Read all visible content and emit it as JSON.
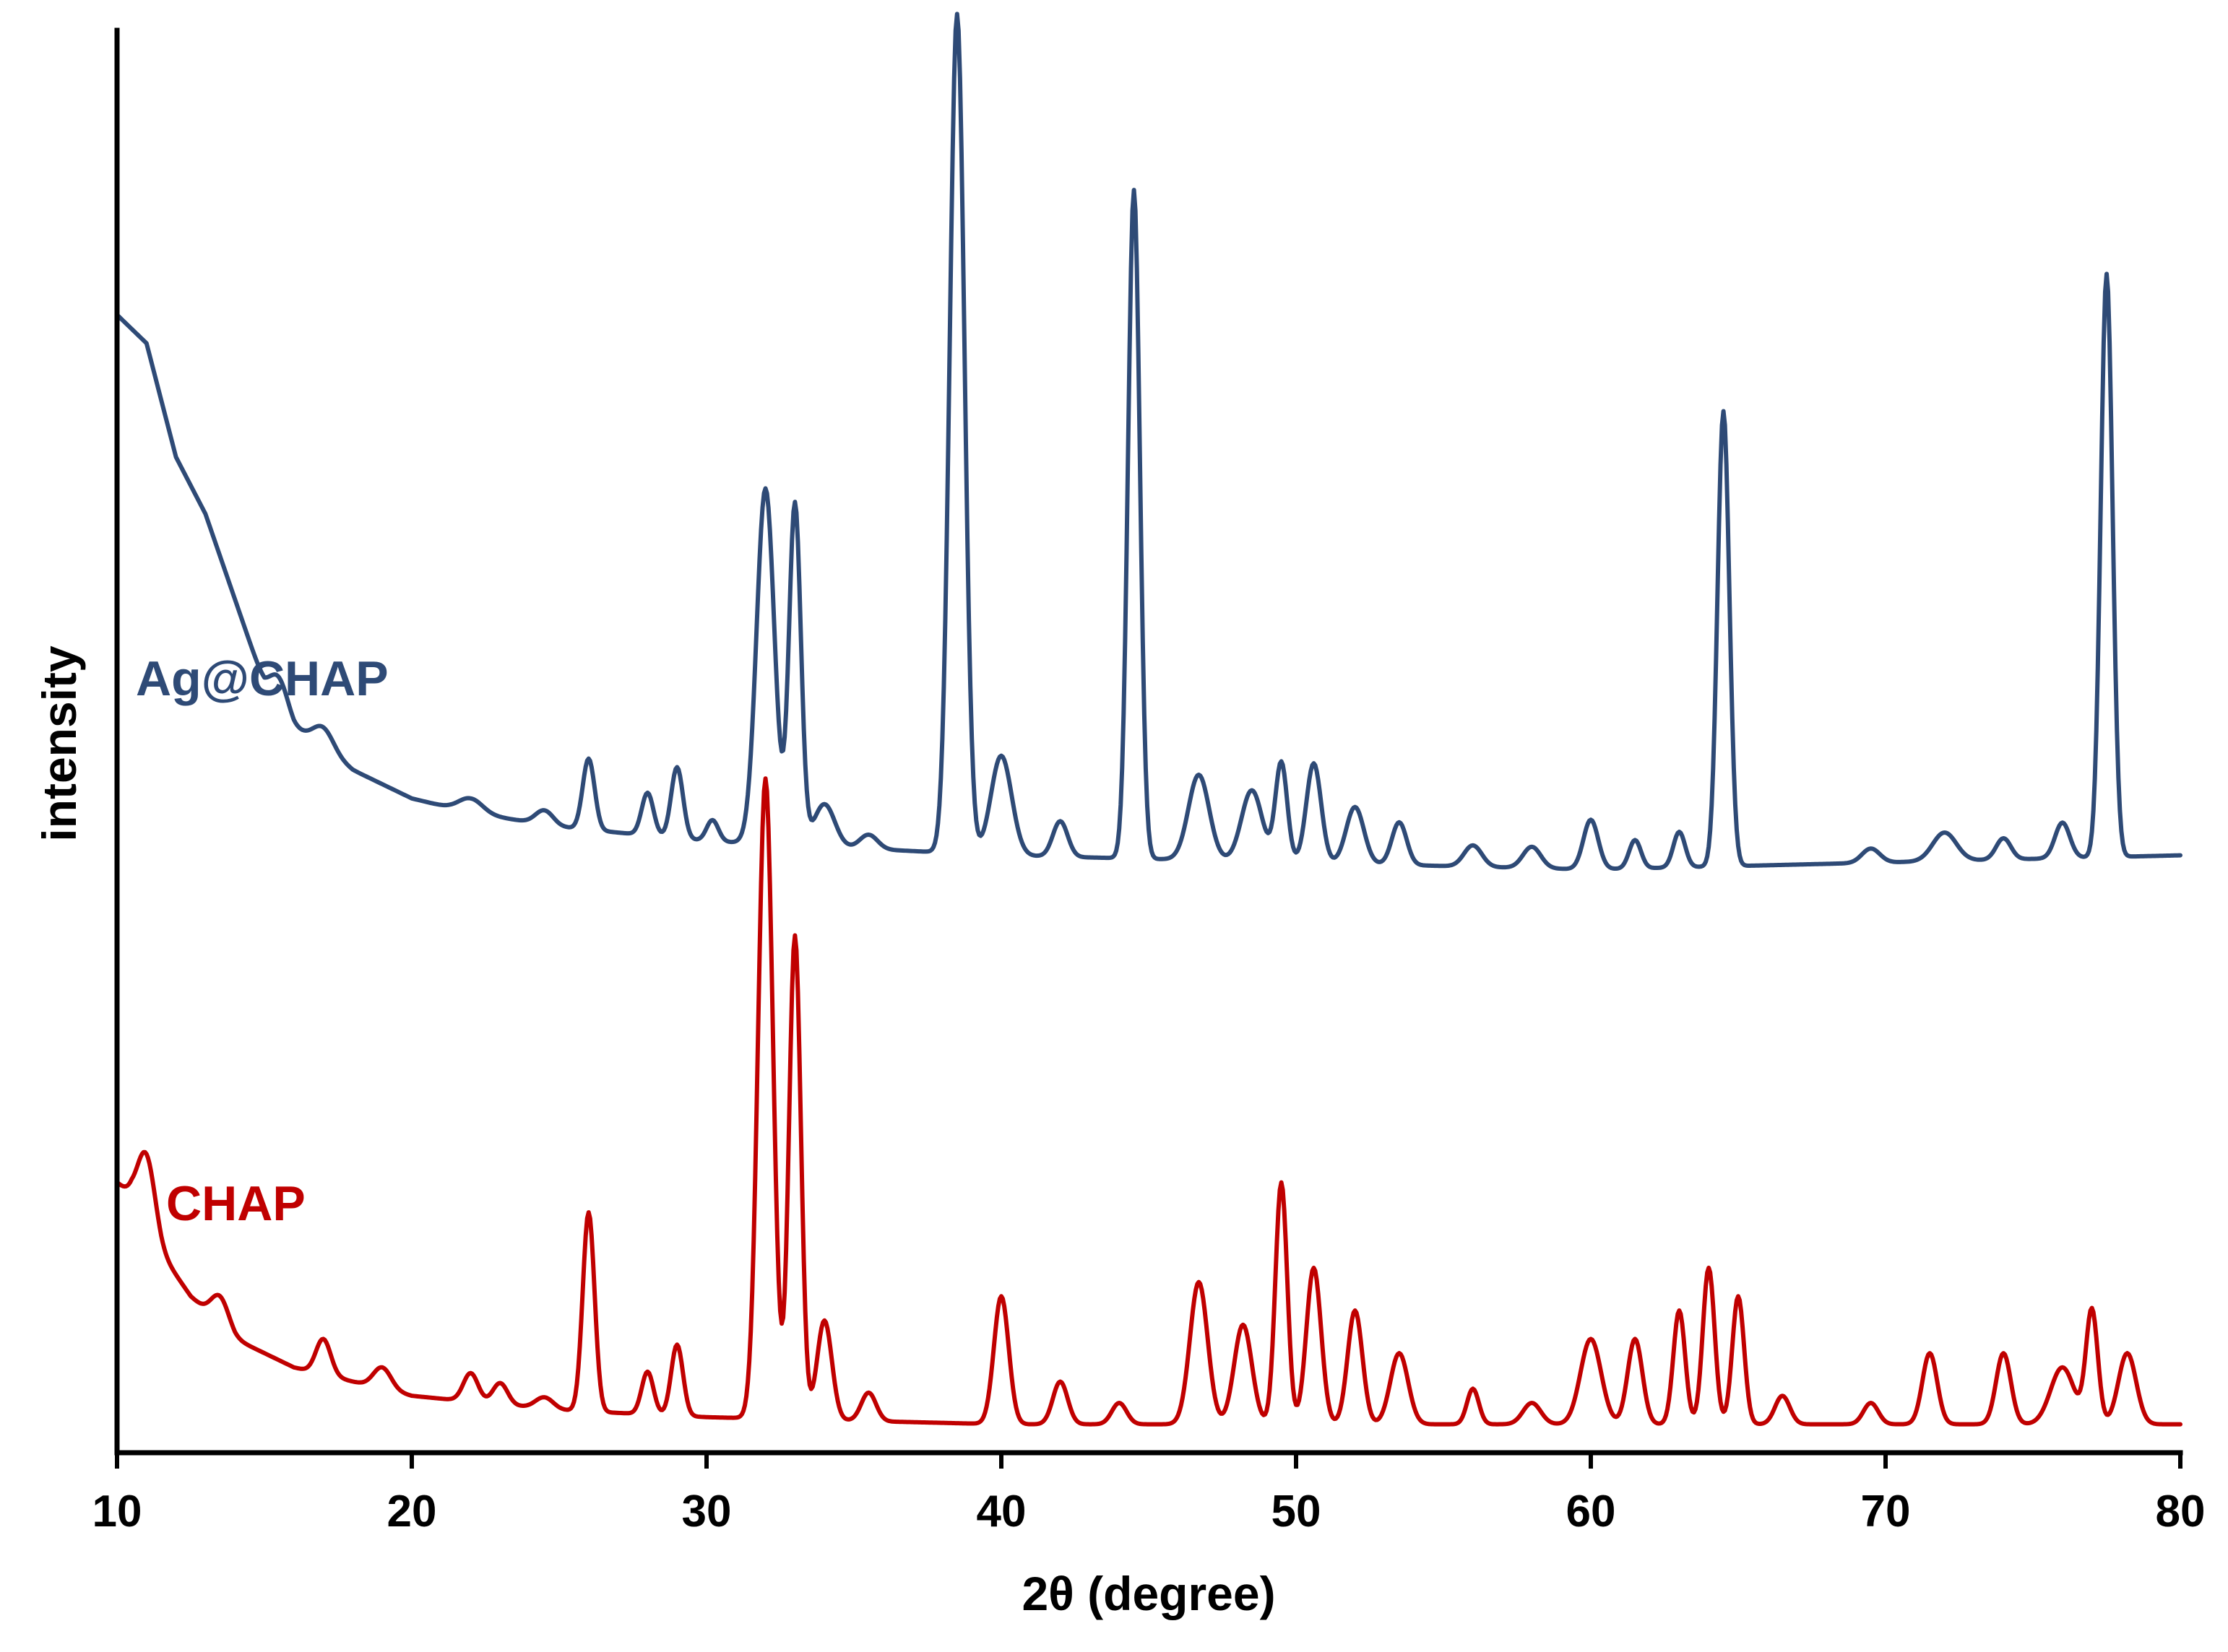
{
  "chart_data": {
    "type": "line",
    "title": "",
    "xlabel": "2θ (degree)",
    "ylabel": "intensity",
    "xlim": [
      10,
      80
    ],
    "ylim": [
      0,
      100
    ],
    "xticks": [
      "10",
      "20",
      "30",
      "40",
      "50",
      "60",
      "70",
      "80"
    ],
    "grid": false,
    "series": [
      {
        "name": "Ag@CHAP",
        "color": "#2E4A76",
        "baseline": 32,
        "background": [
          [
            10,
            80
          ],
          [
            11,
            78
          ],
          [
            12,
            70
          ],
          [
            13,
            66
          ],
          [
            14,
            60
          ],
          [
            15,
            54
          ],
          [
            16,
            51
          ],
          [
            18,
            48
          ],
          [
            20,
            46
          ],
          [
            22,
            45
          ],
          [
            25,
            44
          ],
          [
            30,
            43
          ],
          [
            40,
            42
          ],
          [
            60,
            41
          ],
          [
            80,
            42
          ]
        ],
        "peaks": [
          [
            15.5,
            2,
            0.3
          ],
          [
            17.0,
            1.5,
            0.35
          ],
          [
            22.0,
            1,
            0.4
          ],
          [
            24.5,
            1,
            0.3
          ],
          [
            26.0,
            5,
            0.2
          ],
          [
            28.0,
            3,
            0.2
          ],
          [
            29.0,
            5,
            0.2
          ],
          [
            30.2,
            1.5,
            0.2
          ],
          [
            32.0,
            25,
            0.3
          ],
          [
            33.0,
            24,
            0.2
          ],
          [
            34.0,
            3,
            0.35
          ],
          [
            35.5,
            1,
            0.3
          ],
          [
            38.5,
            59,
            0.25
          ],
          [
            40.0,
            7,
            0.35
          ],
          [
            42.0,
            2.5,
            0.25
          ],
          [
            44.5,
            47,
            0.2
          ],
          [
            46.7,
            6,
            0.35
          ],
          [
            48.5,
            5,
            0.35
          ],
          [
            49.5,
            7,
            0.2
          ],
          [
            50.6,
            7,
            0.25
          ],
          [
            52.0,
            4,
            0.3
          ],
          [
            53.5,
            3,
            0.25
          ],
          [
            56.0,
            1.5,
            0.3
          ],
          [
            58.0,
            1.5,
            0.3
          ],
          [
            60.0,
            3.5,
            0.25
          ],
          [
            61.5,
            2,
            0.2
          ],
          [
            63.0,
            2.5,
            0.2
          ],
          [
            64.5,
            32,
            0.2
          ],
          [
            69.5,
            1,
            0.3
          ],
          [
            72.0,
            2,
            0.4
          ],
          [
            74.0,
            1.5,
            0.25
          ],
          [
            76.0,
            2.5,
            0.25
          ],
          [
            77.5,
            41,
            0.2
          ]
        ]
      },
      {
        "name": "CHAP",
        "color": "#C00000",
        "baseline": 3,
        "background": [
          [
            10,
            19
          ],
          [
            10.5,
            18
          ],
          [
            11.5,
            14
          ],
          [
            12.5,
            11
          ],
          [
            14,
            8
          ],
          [
            16,
            6
          ],
          [
            18,
            5
          ],
          [
            20,
            4
          ],
          [
            25,
            3
          ],
          [
            30,
            2.5
          ],
          [
            40,
            2
          ],
          [
            60,
            2
          ],
          [
            80,
            2
          ]
        ],
        "peaks": [
          [
            11.0,
            5,
            0.3
          ],
          [
            13.5,
            2,
            0.3
          ],
          [
            17.0,
            2.5,
            0.25
          ],
          [
            19.0,
            1.5,
            0.3
          ],
          [
            22.0,
            2,
            0.25
          ],
          [
            23.0,
            1.5,
            0.25
          ],
          [
            24.5,
            0.8,
            0.3
          ],
          [
            26.0,
            14,
            0.2
          ],
          [
            28.0,
            3,
            0.2
          ],
          [
            29.0,
            5,
            0.2
          ],
          [
            32.0,
            45,
            0.25
          ],
          [
            33.0,
            34,
            0.2
          ],
          [
            34.0,
            7,
            0.25
          ],
          [
            35.5,
            2,
            0.25
          ],
          [
            40.0,
            9,
            0.25
          ],
          [
            42.0,
            3,
            0.25
          ],
          [
            44.0,
            1.5,
            0.25
          ],
          [
            46.7,
            10,
            0.3
          ],
          [
            48.2,
            7,
            0.3
          ],
          [
            49.5,
            17,
            0.2
          ],
          [
            50.6,
            11,
            0.25
          ],
          [
            52.0,
            8,
            0.25
          ],
          [
            53.5,
            5,
            0.3
          ],
          [
            56.0,
            2.5,
            0.2
          ],
          [
            58.0,
            1.5,
            0.3
          ],
          [
            60.0,
            6,
            0.35
          ],
          [
            61.5,
            6,
            0.25
          ],
          [
            63.0,
            8,
            0.2
          ],
          [
            64.0,
            11,
            0.2
          ],
          [
            65.0,
            9,
            0.2
          ],
          [
            66.5,
            2,
            0.25
          ],
          [
            69.5,
            1.5,
            0.25
          ],
          [
            71.5,
            5,
            0.25
          ],
          [
            74.0,
            5,
            0.25
          ],
          [
            76.0,
            4,
            0.4
          ],
          [
            77.0,
            8,
            0.2
          ],
          [
            78.2,
            5,
            0.3
          ]
        ]
      }
    ]
  }
}
